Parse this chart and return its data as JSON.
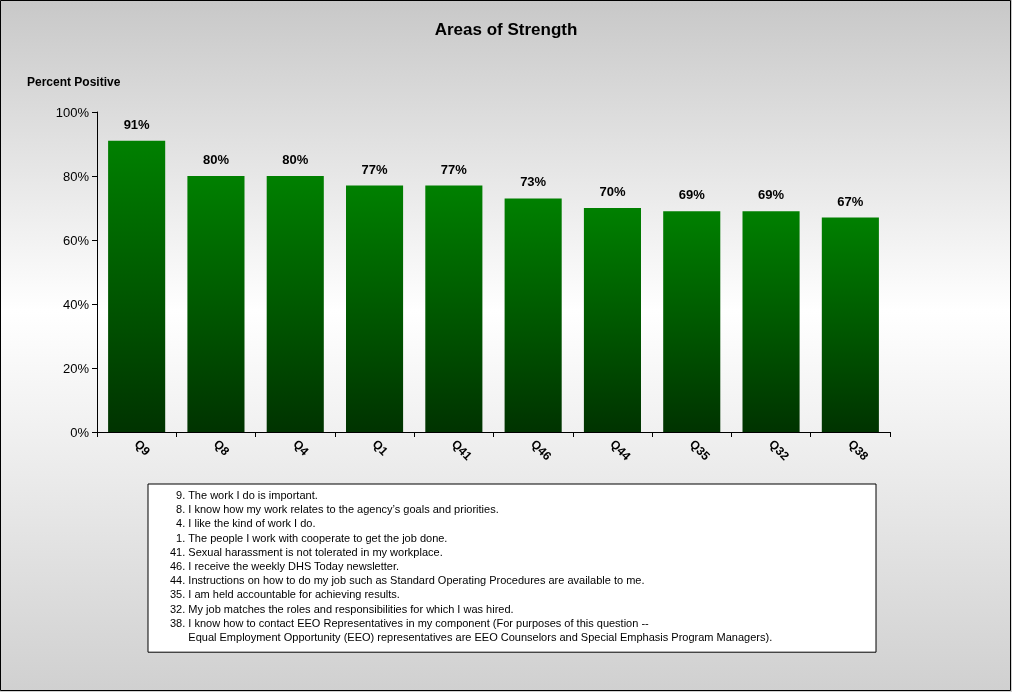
{
  "chart_data": {
    "type": "bar",
    "title": "Areas of Strength",
    "ylabel": "Percent Positive",
    "categories": [
      "Q9",
      "Q8",
      "Q4",
      "Q1",
      "Q41",
      "Q46",
      "Q44",
      "Q35",
      "Q32",
      "Q38"
    ],
    "values": [
      91,
      80,
      80,
      77,
      77,
      73,
      70,
      69,
      69,
      67
    ],
    "value_labels": [
      "91%",
      "80%",
      "80%",
      "77%",
      "77%",
      "73%",
      "70%",
      "69%",
      "69%",
      "67%"
    ],
    "color": "#008000",
    "ylim": [
      0,
      100
    ],
    "yticks": [
      {
        "value": 0,
        "label": "0%"
      },
      {
        "value": 20,
        "label": "20%"
      },
      {
        "value": 40,
        "label": "40%"
      },
      {
        "value": 60,
        "label": "60%"
      },
      {
        "value": 80,
        "label": "80%"
      },
      {
        "value": 100,
        "label": "100%"
      }
    ],
    "grid": false,
    "annotations": [
      "  9. The work I do is important.",
      "  8. I know how my work relates to the agency’s goals and priorities.",
      "  4. I like the kind of work I do.",
      "  1. The people I work with cooperate to get the job done.",
      "41. Sexual harassment is not tolerated in my workplace.",
      "46. I receive the weekly DHS Today newsletter.",
      "44. Instructions on how to do my job such as Standard Operating Procedures are available to me.",
      "35. I am held accountable for achieving results.",
      "32. My job matches the roles and responsibilities for which I was hired.",
      "38. I know how to contact EEO Representatives in my component (For purposes of this question --\n      Equal Employment Opportunity (EEO) representatives are EEO Counselors and Special Emphasis Program Managers)."
    ]
  }
}
